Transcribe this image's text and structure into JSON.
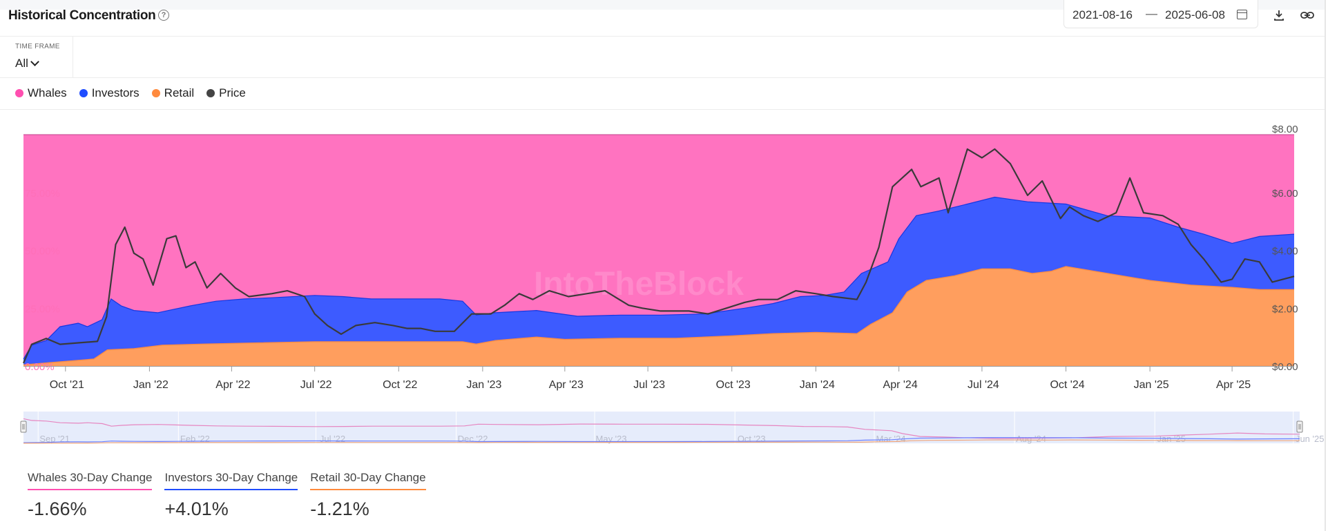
{
  "header": {
    "title": "Historical Concentration",
    "date_from": "2021-08-16",
    "date_sep": "—",
    "date_to": "2025-06-08"
  },
  "time_frame": {
    "label": "TIME FRAME",
    "value": "All"
  },
  "legend": [
    {
      "label": "Whales",
      "color": "#ff4fb0"
    },
    {
      "label": "Investors",
      "color": "#1f4dff"
    },
    {
      "label": "Retail",
      "color": "#ff8a3d"
    },
    {
      "label": "Price",
      "color": "#444444"
    }
  ],
  "watermark": "IntoTheBlock",
  "chart_data": {
    "type": "area",
    "stacked": true,
    "x_start": "2021-08-16",
    "x_end": "2025-06-08",
    "x_ticks": [
      "Oct '21",
      "Jan '22",
      "Apr '22",
      "Jul '22",
      "Oct '22",
      "Jan '23",
      "Apr '23",
      "Jul '23",
      "Oct '23",
      "Jan '24",
      "Apr '24",
      "Jul '24",
      "Oct '24",
      "Jan '25",
      "Apr '25"
    ],
    "x_tick_dates": [
      "2021-10-01",
      "2022-01-01",
      "2022-04-01",
      "2022-07-01",
      "2022-10-01",
      "2023-01-01",
      "2023-04-01",
      "2023-07-01",
      "2023-10-01",
      "2024-01-01",
      "2024-04-01",
      "2024-07-01",
      "2024-10-01",
      "2025-01-01",
      "2025-04-01"
    ],
    "y_left_ticks": [
      "0.00%",
      "25.00%",
      "50.00%",
      "75.00%"
    ],
    "y_left_values": [
      0,
      25,
      50,
      75
    ],
    "y_left_range": [
      0,
      100
    ],
    "y_right_ticks": [
      "$0.00",
      "$2.00",
      "$4.00",
      "$6.00",
      "$8.00"
    ],
    "y_right_values": [
      0,
      2,
      4,
      6,
      8
    ],
    "y_right_range": [
      0,
      8
    ],
    "navigator_ticks": [
      "Sep '21",
      "Feb '22",
      "Jul '22",
      "Dec '22",
      "May '23",
      "Oct '23",
      "Mar '24",
      "Aug '24",
      "Jan '25",
      "Jun '25"
    ],
    "navigator_tick_dates": [
      "2021-09-01",
      "2022-02-01",
      "2022-07-01",
      "2022-12-01",
      "2023-05-01",
      "2023-10-01",
      "2024-03-01",
      "2024-08-01",
      "2025-01-01",
      "2025-06-01"
    ],
    "series": [
      {
        "name": "Retail",
        "color": "#ff9e5e",
        "points": [
          [
            "2021-08-16",
            0.5
          ],
          [
            "2021-09-15",
            1.5
          ],
          [
            "2021-11-01",
            3
          ],
          [
            "2021-11-16",
            7
          ],
          [
            "2021-12-15",
            7.5
          ],
          [
            "2022-01-15",
            9
          ],
          [
            "2022-03-01",
            9.5
          ],
          [
            "2022-05-01",
            10
          ],
          [
            "2022-07-01",
            10.5
          ],
          [
            "2022-08-15",
            10.5
          ],
          [
            "2022-09-15",
            10.5
          ],
          [
            "2022-11-01",
            10.5
          ],
          [
            "2022-12-10",
            10.5
          ],
          [
            "2022-12-25",
            9.5
          ],
          [
            "2023-01-15",
            11
          ],
          [
            "2023-03-01",
            12.5
          ],
          [
            "2023-04-01",
            11.5
          ],
          [
            "2023-06-01",
            12
          ],
          [
            "2023-08-01",
            12
          ],
          [
            "2023-10-01",
            13
          ],
          [
            "2023-11-15",
            14
          ],
          [
            "2024-01-01",
            14.5
          ],
          [
            "2024-02-15",
            14
          ],
          [
            "2024-03-01",
            18
          ],
          [
            "2024-03-25",
            23
          ],
          [
            "2024-04-10",
            32
          ],
          [
            "2024-05-01",
            37
          ],
          [
            "2024-06-01",
            39
          ],
          [
            "2024-07-01",
            42
          ],
          [
            "2024-08-01",
            42
          ],
          [
            "2024-08-25",
            40
          ],
          [
            "2024-09-15",
            41
          ],
          [
            "2024-10-01",
            43
          ],
          [
            "2024-11-01",
            41
          ],
          [
            "2024-12-01",
            39
          ],
          [
            "2025-01-01",
            37
          ],
          [
            "2025-02-15",
            35
          ],
          [
            "2025-04-01",
            34
          ],
          [
            "2025-05-01",
            33
          ],
          [
            "2025-06-08",
            33
          ]
        ]
      },
      {
        "name": "Investors",
        "color": "#3d5bff",
        "points": [
          [
            "2021-08-16",
            3
          ],
          [
            "2021-08-25",
            9
          ],
          [
            "2021-09-10",
            11
          ],
          [
            "2021-09-25",
            17
          ],
          [
            "2021-10-15",
            18.5
          ],
          [
            "2021-10-25",
            17
          ],
          [
            "2021-11-10",
            20
          ],
          [
            "2021-11-20",
            29
          ],
          [
            "2021-12-01",
            26
          ],
          [
            "2021-12-15",
            24
          ],
          [
            "2022-01-10",
            23
          ],
          [
            "2022-02-15",
            26
          ],
          [
            "2022-03-15",
            28
          ],
          [
            "2022-04-15",
            29
          ],
          [
            "2022-05-15",
            29.5
          ],
          [
            "2022-07-01",
            30.5
          ],
          [
            "2022-08-01",
            30
          ],
          [
            "2022-09-01",
            29
          ],
          [
            "2022-10-01",
            29
          ],
          [
            "2022-11-15",
            29
          ],
          [
            "2022-12-10",
            28
          ],
          [
            "2022-12-25",
            22
          ],
          [
            "2023-01-15",
            23
          ],
          [
            "2023-03-01",
            24
          ],
          [
            "2023-04-15",
            21.5
          ],
          [
            "2023-06-01",
            22
          ],
          [
            "2023-07-15",
            22
          ],
          [
            "2023-09-01",
            22.5
          ],
          [
            "2023-10-15",
            25
          ],
          [
            "2023-11-15",
            27
          ],
          [
            "2023-12-15",
            30
          ],
          [
            "2024-01-10",
            30.5
          ],
          [
            "2024-02-01",
            32
          ],
          [
            "2024-02-20",
            40
          ],
          [
            "2024-03-20",
            45
          ],
          [
            "2024-04-01",
            55
          ],
          [
            "2024-04-20",
            65
          ],
          [
            "2024-05-15",
            67
          ],
          [
            "2024-06-15",
            70
          ],
          [
            "2024-07-15",
            73
          ],
          [
            "2024-08-20",
            71
          ],
          [
            "2024-10-01",
            70
          ],
          [
            "2024-11-15",
            65
          ],
          [
            "2025-01-01",
            64
          ],
          [
            "2025-02-01",
            60
          ],
          [
            "2025-03-01",
            57
          ],
          [
            "2025-04-01",
            53
          ],
          [
            "2025-05-01",
            56
          ],
          [
            "2025-06-08",
            57
          ]
        ]
      },
      {
        "name": "Whales",
        "color": "#ff73c0",
        "points": [
          [
            "2021-08-16",
            100
          ],
          [
            "2025-06-08",
            100
          ]
        ]
      }
    ],
    "price_series": {
      "name": "Price",
      "color": "#444444",
      "points": [
        [
          "2021-08-16",
          0.1
        ],
        [
          "2021-08-25",
          0.75
        ],
        [
          "2021-09-10",
          0.95
        ],
        [
          "2021-09-25",
          0.75
        ],
        [
          "2021-10-15",
          0.8
        ],
        [
          "2021-11-05",
          0.85
        ],
        [
          "2021-11-15",
          1.7
        ],
        [
          "2021-11-25",
          4.2
        ],
        [
          "2021-12-05",
          4.8
        ],
        [
          "2021-12-15",
          3.9
        ],
        [
          "2021-12-25",
          3.7
        ],
        [
          "2022-01-05",
          2.8
        ],
        [
          "2022-01-20",
          4.4
        ],
        [
          "2022-01-30",
          4.5
        ],
        [
          "2022-02-10",
          3.4
        ],
        [
          "2022-02-20",
          3.6
        ],
        [
          "2022-03-05",
          2.7
        ],
        [
          "2022-03-20",
          3.2
        ],
        [
          "2022-04-05",
          2.7
        ],
        [
          "2022-04-20",
          2.4
        ],
        [
          "2022-05-15",
          2.5
        ],
        [
          "2022-06-01",
          2.6
        ],
        [
          "2022-06-20",
          2.4
        ],
        [
          "2022-07-01",
          1.8
        ],
        [
          "2022-07-15",
          1.4
        ],
        [
          "2022-07-30",
          1.1
        ],
        [
          "2022-08-15",
          1.4
        ],
        [
          "2022-09-05",
          1.5
        ],
        [
          "2022-09-25",
          1.4
        ],
        [
          "2022-10-10",
          1.3
        ],
        [
          "2022-10-25",
          1.3
        ],
        [
          "2022-11-10",
          1.2
        ],
        [
          "2022-12-01",
          1.2
        ],
        [
          "2022-12-20",
          1.8
        ],
        [
          "2023-01-10",
          1.8
        ],
        [
          "2023-01-25",
          2.1
        ],
        [
          "2023-02-10",
          2.5
        ],
        [
          "2023-02-25",
          2.3
        ],
        [
          "2023-03-15",
          2.6
        ],
        [
          "2023-04-05",
          2.4
        ],
        [
          "2023-04-25",
          2.5
        ],
        [
          "2023-05-15",
          2.6
        ],
        [
          "2023-06-10",
          2.1
        ],
        [
          "2023-06-25",
          2.0
        ],
        [
          "2023-07-15",
          1.9
        ],
        [
          "2023-08-15",
          1.9
        ],
        [
          "2023-09-05",
          1.8
        ],
        [
          "2023-09-25",
          2.0
        ],
        [
          "2023-10-15",
          2.2
        ],
        [
          "2023-10-30",
          2.3
        ],
        [
          "2023-11-20",
          2.3
        ],
        [
          "2023-12-10",
          2.6
        ],
        [
          "2024-01-01",
          2.5
        ],
        [
          "2024-01-20",
          2.4
        ],
        [
          "2024-02-15",
          2.3
        ],
        [
          "2024-02-25",
          2.9
        ],
        [
          "2024-03-10",
          4.1
        ],
        [
          "2024-03-25",
          6.2
        ],
        [
          "2024-04-15",
          6.8
        ],
        [
          "2024-04-25",
          6.2
        ],
        [
          "2024-05-15",
          6.5
        ],
        [
          "2024-05-25",
          5.3
        ],
        [
          "2024-06-15",
          7.5
        ],
        [
          "2024-07-01",
          7.2
        ],
        [
          "2024-07-15",
          7.5
        ],
        [
          "2024-08-01",
          7.0
        ],
        [
          "2024-08-20",
          5.9
        ],
        [
          "2024-09-05",
          6.4
        ],
        [
          "2024-09-25",
          5.1
        ],
        [
          "2024-10-05",
          5.5
        ],
        [
          "2024-10-20",
          5.2
        ],
        [
          "2024-11-05",
          5.0
        ],
        [
          "2024-11-25",
          5.3
        ],
        [
          "2024-12-10",
          6.5
        ],
        [
          "2024-12-25",
          5.3
        ],
        [
          "2025-01-15",
          5.2
        ],
        [
          "2025-02-01",
          4.9
        ],
        [
          "2025-02-15",
          4.2
        ],
        [
          "2025-03-01",
          3.7
        ],
        [
          "2025-03-20",
          2.9
        ],
        [
          "2025-04-01",
          3.0
        ],
        [
          "2025-04-15",
          3.7
        ],
        [
          "2025-05-01",
          3.6
        ],
        [
          "2025-05-15",
          2.9
        ],
        [
          "2025-06-08",
          3.1
        ]
      ]
    }
  },
  "changes": [
    {
      "label": "Whales 30-Day Change",
      "value": "-1.66%",
      "color": "#ff4fb0"
    },
    {
      "label": "Investors 30-Day Change",
      "value": "+4.01%",
      "color": "#1f4dff"
    },
    {
      "label": "Retail 30-Day Change",
      "value": "-1.21%",
      "color": "#ff8a3d"
    }
  ]
}
